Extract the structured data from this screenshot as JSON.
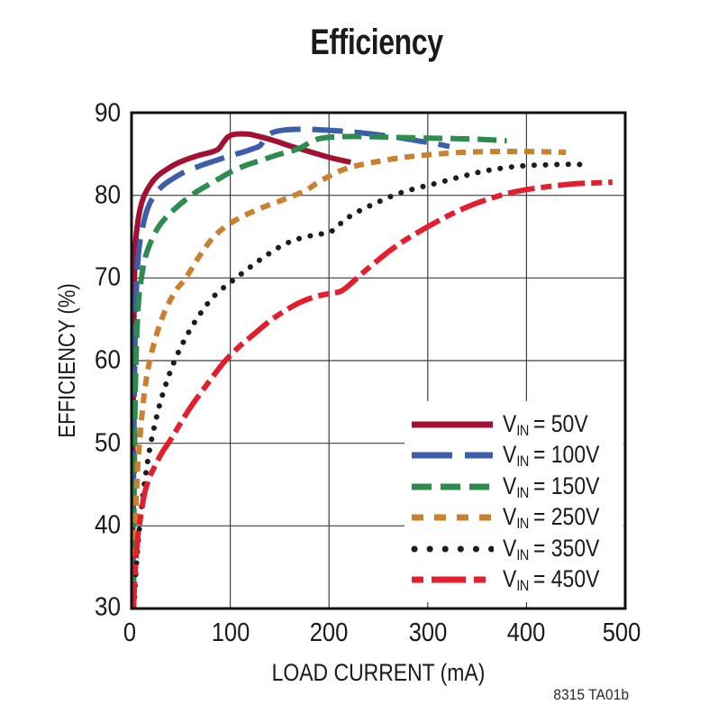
{
  "chart_data": {
    "type": "line",
    "title": "Efficiency",
    "xlabel": "LOAD CURRENT (mA)",
    "ylabel": "EFFICIENCY (%)",
    "footer_note": "8315 TA01b",
    "xlim": [
      0,
      500
    ],
    "ylim": [
      30,
      90
    ],
    "grid": true,
    "legend_position": "bottom-right-inside",
    "x_ticks": [
      0,
      100,
      200,
      300,
      400,
      500
    ],
    "y_ticks": [
      90,
      80,
      70,
      60,
      50,
      40,
      30
    ],
    "x_tick_labels": [
      "0",
      "100",
      "200",
      "300",
      "400",
      "500"
    ],
    "y_tick_labels": [
      "90",
      "80",
      "70",
      "60",
      "50",
      "40",
      "30"
    ],
    "colors": {
      "frame": "#111111",
      "gridline": "#3f3f3f",
      "vin_50": "#A31132",
      "vin_100": "#3D5DAA",
      "vin_150": "#2E8B4E",
      "vin_250": "#C9812F",
      "vin_350": "#1C1C1C",
      "vin_450": "#E41E2D"
    },
    "series": [
      {
        "name": "VIN = 50V",
        "label": {
          "base": "V",
          "sub": "IN",
          "rest": "= 50V"
        },
        "color": "#A31132",
        "style": "solid",
        "dash": null,
        "legend_dash": null,
        "points": [
          [
            1,
            30
          ],
          [
            1.5,
            50
          ],
          [
            2,
            62
          ],
          [
            3,
            70
          ],
          [
            4,
            74
          ],
          [
            6,
            76.5
          ],
          [
            9,
            78.5
          ],
          [
            13,
            80
          ],
          [
            19,
            81.3
          ],
          [
            26,
            82.3
          ],
          [
            35,
            83.1
          ],
          [
            45,
            83.8
          ],
          [
            57,
            84.4
          ],
          [
            70,
            84.9
          ],
          [
            80,
            85.2
          ],
          [
            88,
            85.6
          ],
          [
            93,
            86.4
          ],
          [
            98,
            87.1
          ],
          [
            105,
            87.4
          ],
          [
            118,
            87.4
          ],
          [
            130,
            87.1
          ],
          [
            145,
            86.6
          ],
          [
            160,
            86
          ],
          [
            180,
            85.3
          ],
          [
            200,
            84.6
          ],
          [
            222,
            84
          ]
        ]
      },
      {
        "name": "VIN = 100V",
        "label": {
          "base": "V",
          "sub": "IN",
          "rest": "= 100V"
        },
        "color": "#3D5DAA",
        "style": "dashed",
        "dash": "34 13",
        "legend_dash": "45 14 32",
        "points": [
          [
            1.5,
            30
          ],
          [
            2,
            45
          ],
          [
            3,
            58
          ],
          [
            4,
            65
          ],
          [
            5.5,
            70
          ],
          [
            7.5,
            73.5
          ],
          [
            11,
            76
          ],
          [
            16,
            78.3
          ],
          [
            23,
            80
          ],
          [
            32,
            81.2
          ],
          [
            43,
            82.1
          ],
          [
            55,
            82.9
          ],
          [
            70,
            83.6
          ],
          [
            85,
            84.2
          ],
          [
            100,
            84.8
          ],
          [
            112,
            85.2
          ],
          [
            122,
            85.6
          ],
          [
            130,
            86
          ],
          [
            136,
            87
          ],
          [
            143,
            87.6
          ],
          [
            155,
            87.9
          ],
          [
            175,
            88
          ],
          [
            195,
            87.9
          ],
          [
            220,
            87.7
          ],
          [
            245,
            87.4
          ],
          [
            270,
            87
          ],
          [
            295,
            86.5
          ],
          [
            310,
            86.2
          ],
          [
            322,
            85.9
          ]
        ]
      },
      {
        "name": "VIN = 150V",
        "label": {
          "base": "V",
          "sub": "IN",
          "rest": "= 150V"
        },
        "color": "#2E8B4E",
        "style": "dashed",
        "dash": "21 9",
        "legend_dash": "22 10",
        "points": [
          [
            2,
            30
          ],
          [
            2.5,
            42
          ],
          [
            3.5,
            54
          ],
          [
            5,
            62
          ],
          [
            7,
            67
          ],
          [
            10,
            70
          ],
          [
            14,
            72.5
          ],
          [
            20,
            74.5
          ],
          [
            28,
            76.3
          ],
          [
            38,
            77.7
          ],
          [
            50,
            79
          ],
          [
            63,
            80.2
          ],
          [
            78,
            81.3
          ],
          [
            90,
            82.1
          ],
          [
            100,
            82.8
          ],
          [
            115,
            83.6
          ],
          [
            130,
            84.2
          ],
          [
            148,
            84.9
          ],
          [
            163,
            85.4
          ],
          [
            172,
            85.8
          ],
          [
            182,
            86.5
          ],
          [
            192,
            86.9
          ],
          [
            210,
            87.1
          ],
          [
            240,
            87.1
          ],
          [
            270,
            87
          ],
          [
            310,
            86.9
          ],
          [
            350,
            86.8
          ],
          [
            380,
            86.6
          ]
        ]
      },
      {
        "name": "VIN = 250V",
        "label": {
          "base": "V",
          "sub": "IN",
          "rest": "= 250V"
        },
        "color": "#C9812F",
        "style": "dashed",
        "dash": "11 8",
        "legend_dash": "13 12",
        "points": [
          [
            2,
            30
          ],
          [
            3,
            36
          ],
          [
            4,
            41
          ],
          [
            6,
            46.5
          ],
          [
            8,
            50
          ],
          [
            11,
            54
          ],
          [
            15,
            57.8
          ],
          [
            20,
            60.8
          ],
          [
            27,
            63.8
          ],
          [
            35,
            66.3
          ],
          [
            45,
            68.5
          ],
          [
            55,
            70
          ],
          [
            68,
            72.5
          ],
          [
            82,
            74.8
          ],
          [
            95,
            76.2
          ],
          [
            110,
            77.3
          ],
          [
            130,
            78.4
          ],
          [
            150,
            79.3
          ],
          [
            165,
            80
          ],
          [
            178,
            80.7
          ],
          [
            188,
            81.5
          ],
          [
            200,
            82.3
          ],
          [
            212,
            83
          ],
          [
            225,
            83.5
          ],
          [
            245,
            84
          ],
          [
            270,
            84.5
          ],
          [
            300,
            84.9
          ],
          [
            335,
            85.2
          ],
          [
            370,
            85.3
          ],
          [
            405,
            85.3
          ],
          [
            440,
            85.2
          ]
        ]
      },
      {
        "name": "VIN = 350V",
        "label": {
          "base": "V",
          "sub": "IN",
          "rest": "= 350V"
        },
        "color": "#1C1C1C",
        "style": "dotted",
        "dash": "0.1 12.5",
        "legend_dash": "0.1 17",
        "points": [
          [
            2.5,
            30
          ],
          [
            4,
            33.5
          ],
          [
            6,
            37
          ],
          [
            9,
            41
          ],
          [
            13,
            45
          ],
          [
            18,
            49
          ],
          [
            25,
            53
          ],
          [
            33,
            56.5
          ],
          [
            43,
            59.8
          ],
          [
            55,
            62.8
          ],
          [
            68,
            65.4
          ],
          [
            82,
            67.6
          ],
          [
            95,
            69
          ],
          [
            105,
            69.9
          ],
          [
            120,
            71.3
          ],
          [
            135,
            72.6
          ],
          [
            152,
            73.9
          ],
          [
            168,
            74.7
          ],
          [
            185,
            75.2
          ],
          [
            200,
            75.5
          ],
          [
            208,
            76.2
          ],
          [
            218,
            77.2
          ],
          [
            232,
            78.2
          ],
          [
            250,
            79.2
          ],
          [
            270,
            80.2
          ],
          [
            290,
            80.9
          ],
          [
            310,
            81.5
          ],
          [
            335,
            82.3
          ],
          [
            360,
            83
          ],
          [
            390,
            83.5
          ],
          [
            420,
            83.7
          ],
          [
            445,
            83.75
          ],
          [
            465,
            83.7
          ]
        ]
      },
      {
        "name": "VIN = 450V",
        "label": {
          "base": "V",
          "sub": "IN",
          "rest": "= 450V"
        },
        "color": "#E41E2D",
        "style": "dash-dot",
        "dash": "30 7 12 7",
        "legend_dash": "13 9 38 9",
        "points": [
          [
            2,
            30
          ],
          [
            3,
            33
          ],
          [
            4.5,
            36
          ],
          [
            6.5,
            38.8
          ],
          [
            9,
            41
          ],
          [
            13,
            43.8
          ],
          [
            18,
            45.8
          ],
          [
            24,
            47.3
          ],
          [
            31,
            48.9
          ],
          [
            40,
            50.5
          ],
          [
            50,
            52.5
          ],
          [
            60,
            54.4
          ],
          [
            72,
            56.4
          ],
          [
            85,
            58.5
          ],
          [
            95,
            60
          ],
          [
            110,
            61.8
          ],
          [
            125,
            63.3
          ],
          [
            140,
            64.8
          ],
          [
            155,
            66
          ],
          [
            170,
            67
          ],
          [
            185,
            67.7
          ],
          [
            200,
            68.1
          ],
          [
            212,
            68.4
          ],
          [
            222,
            69.3
          ],
          [
            235,
            70.7
          ],
          [
            250,
            72.2
          ],
          [
            265,
            73.6
          ],
          [
            280,
            74.8
          ],
          [
            300,
            76.2
          ],
          [
            320,
            77.5
          ],
          [
            340,
            78.6
          ],
          [
            360,
            79.5
          ],
          [
            380,
            80.2
          ],
          [
            400,
            80.7
          ],
          [
            425,
            81.1
          ],
          [
            450,
            81.4
          ],
          [
            470,
            81.5
          ],
          [
            487,
            81.6
          ]
        ]
      }
    ]
  }
}
